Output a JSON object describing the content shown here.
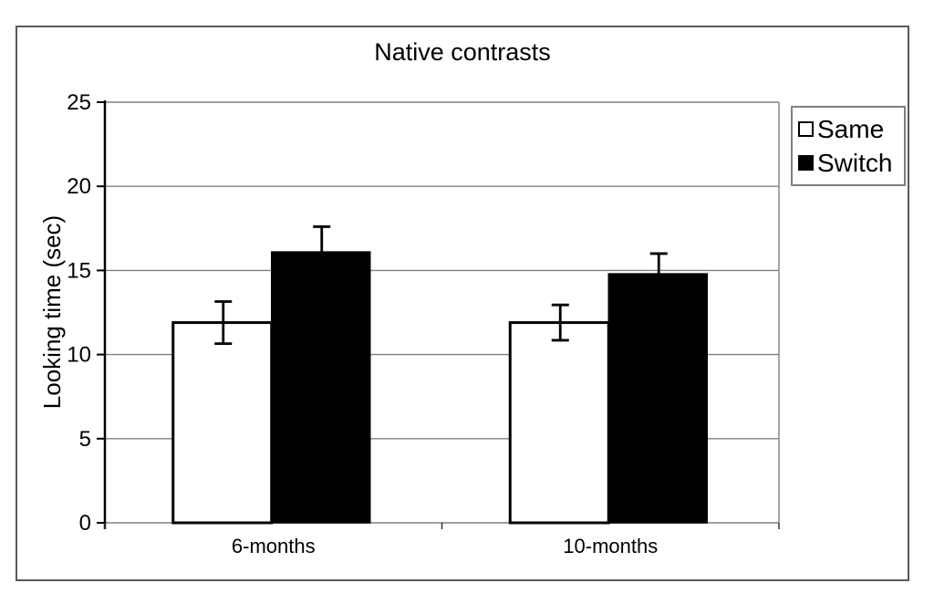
{
  "figure": {
    "background": "#ffffff"
  },
  "chart_data": {
    "type": "bar",
    "title": "Native contrasts",
    "xlabel": "",
    "ylabel": "Looking time (sec)",
    "categories": [
      "6-months",
      "10-months"
    ],
    "series": [
      {
        "name": "Same",
        "fill": "#ffffff",
        "values": [
          11.9,
          11.9
        ],
        "errors": [
          1.25,
          1.05
        ]
      },
      {
        "name": "Switch",
        "fill": "#000000",
        "values": [
          16.1,
          14.8
        ],
        "errors": [
          1.5,
          1.2
        ]
      }
    ],
    "ylim": [
      0,
      25
    ],
    "yticks": [
      0,
      5,
      10,
      15,
      20,
      25
    ],
    "grid": true,
    "legend_position": "outside-top-right",
    "legend_entries": [
      "Same",
      "Switch"
    ]
  },
  "colors": {
    "gridline": "#808080",
    "plot_border": "#808080",
    "axis": "#000000",
    "frame_border": "#595959",
    "legend_border": "#7f7f7f",
    "text": "#000000",
    "bar_same_fill": "#ffffff",
    "bar_switch_fill": "#000000",
    "error_bar": "#000000"
  }
}
